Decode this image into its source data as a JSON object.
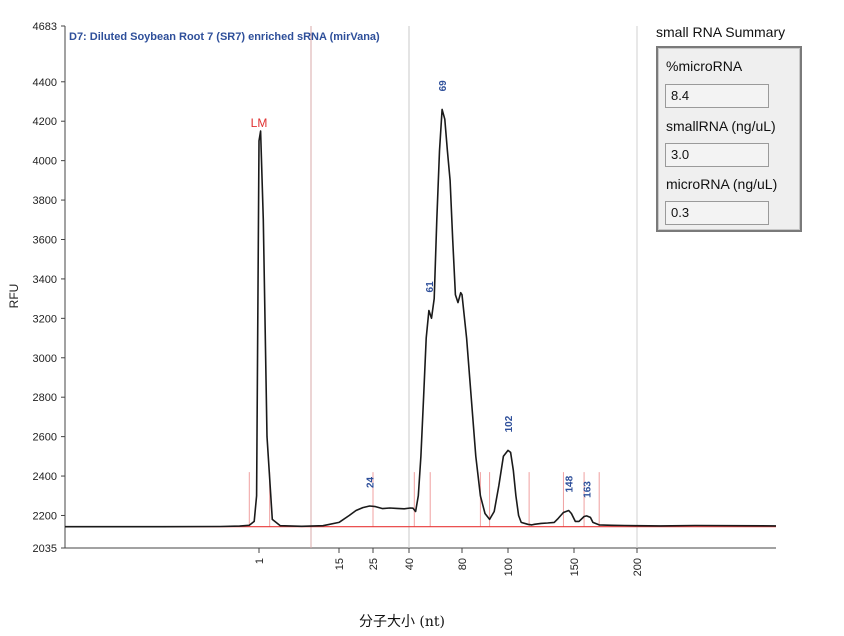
{
  "chart_data": {
    "type": "line",
    "title": "D7: Diluted Soybean Root 7 (SR7) enriched sRNA (mirVana)",
    "ylabel": "RFU",
    "xlabel": "分子大小 (nt)",
    "ylim": [
      2035,
      4683
    ],
    "y_ticks": [
      2035,
      2200,
      2400,
      2600,
      2800,
      3000,
      3200,
      3400,
      3600,
      3800,
      4000,
      4200,
      4400,
      4683
    ],
    "x_ticks": [
      1,
      15,
      25,
      40,
      80,
      100,
      150,
      200
    ],
    "series": [
      {
        "points": [
          [
            -40,
            2143
          ],
          [
            -20,
            2143
          ],
          [
            -8,
            2144
          ],
          [
            -4,
            2146
          ],
          [
            -2,
            2150
          ],
          [
            -1,
            2170
          ],
          [
            -0.5,
            2300
          ],
          [
            0,
            4100
          ],
          [
            0.3,
            4150
          ],
          [
            0.8,
            3700
          ],
          [
            1.5,
            2600
          ],
          [
            2.5,
            2180
          ],
          [
            4,
            2148
          ],
          [
            8,
            2145
          ],
          [
            12,
            2148
          ],
          [
            15,
            2165
          ],
          [
            18,
            2200
          ],
          [
            20,
            2225
          ],
          [
            22,
            2240
          ],
          [
            24,
            2248
          ],
          [
            26,
            2245
          ],
          [
            29,
            2235
          ],
          [
            32,
            2238
          ],
          [
            35,
            2236
          ],
          [
            38,
            2234
          ],
          [
            41,
            2238
          ],
          [
            43,
            2237
          ],
          [
            45,
            2220
          ],
          [
            47,
            2300
          ],
          [
            49,
            2500
          ],
          [
            51,
            2800
          ],
          [
            53,
            3100
          ],
          [
            55,
            3240
          ],
          [
            57,
            3200
          ],
          [
            59,
            3300
          ],
          [
            61,
            3700
          ],
          [
            63,
            4050
          ],
          [
            65,
            4260
          ],
          [
            67,
            4210
          ],
          [
            69,
            4050
          ],
          [
            71,
            3900
          ],
          [
            73,
            3600
          ],
          [
            75,
            3320
          ],
          [
            77,
            3280
          ],
          [
            79,
            3330
          ],
          [
            80,
            3320
          ],
          [
            82,
            3100
          ],
          [
            84,
            2800
          ],
          [
            86,
            2500
          ],
          [
            88,
            2300
          ],
          [
            90,
            2210
          ],
          [
            92,
            2180
          ],
          [
            94,
            2220
          ],
          [
            96,
            2350
          ],
          [
            98,
            2500
          ],
          [
            100,
            2530
          ],
          [
            102,
            2520
          ],
          [
            104,
            2430
          ],
          [
            106,
            2300
          ],
          [
            108,
            2200
          ],
          [
            110,
            2165
          ],
          [
            115,
            2155
          ],
          [
            118,
            2152
          ],
          [
            120,
            2155
          ],
          [
            125,
            2160
          ],
          [
            130,
            2162
          ],
          [
            135,
            2165
          ],
          [
            138,
            2185
          ],
          [
            142,
            2215
          ],
          [
            146,
            2225
          ],
          [
            148,
            2210
          ],
          [
            151,
            2170
          ],
          [
            154,
            2170
          ],
          [
            158,
            2195
          ],
          [
            160,
            2198
          ],
          [
            163,
            2190
          ],
          [
            165,
            2165
          ],
          [
            170,
            2152
          ],
          [
            180,
            2150
          ],
          [
            190,
            2149
          ],
          [
            200,
            2148
          ],
          [
            210,
            2147
          ],
          [
            225,
            2149
          ],
          [
            260,
            2147
          ]
        ]
      }
    ],
    "baseline_y": 2143,
    "peak_labels": [
      {
        "text": "LM",
        "x": 0,
        "y": 4100
      },
      {
        "text": "24",
        "x": 24,
        "y": 2248
      },
      {
        "text": "61",
        "x": 55,
        "y": 3240
      },
      {
        "text": "69",
        "x": 65,
        "y": 4260
      },
      {
        "text": "102",
        "x": 100,
        "y": 2530
      },
      {
        "text": "148",
        "x": 146,
        "y": 2225
      },
      {
        "text": "163",
        "x": 160,
        "y": 2198
      }
    ],
    "colors": {
      "trace": "#1a1a1a",
      "baseline": "#e83a3a",
      "marker_lines": "#f0a0a0",
      "labels": "#2e4f9a",
      "lm_label": "#e03030"
    }
  },
  "summary": {
    "title": "small RNA Summary",
    "fields": [
      {
        "label": "%microRNA",
        "value": "8.4"
      },
      {
        "label": "smallRNA (ng/uL)",
        "value": "3.0"
      },
      {
        "label": "microRNA (ng/uL)",
        "value": "0.3"
      }
    ]
  }
}
